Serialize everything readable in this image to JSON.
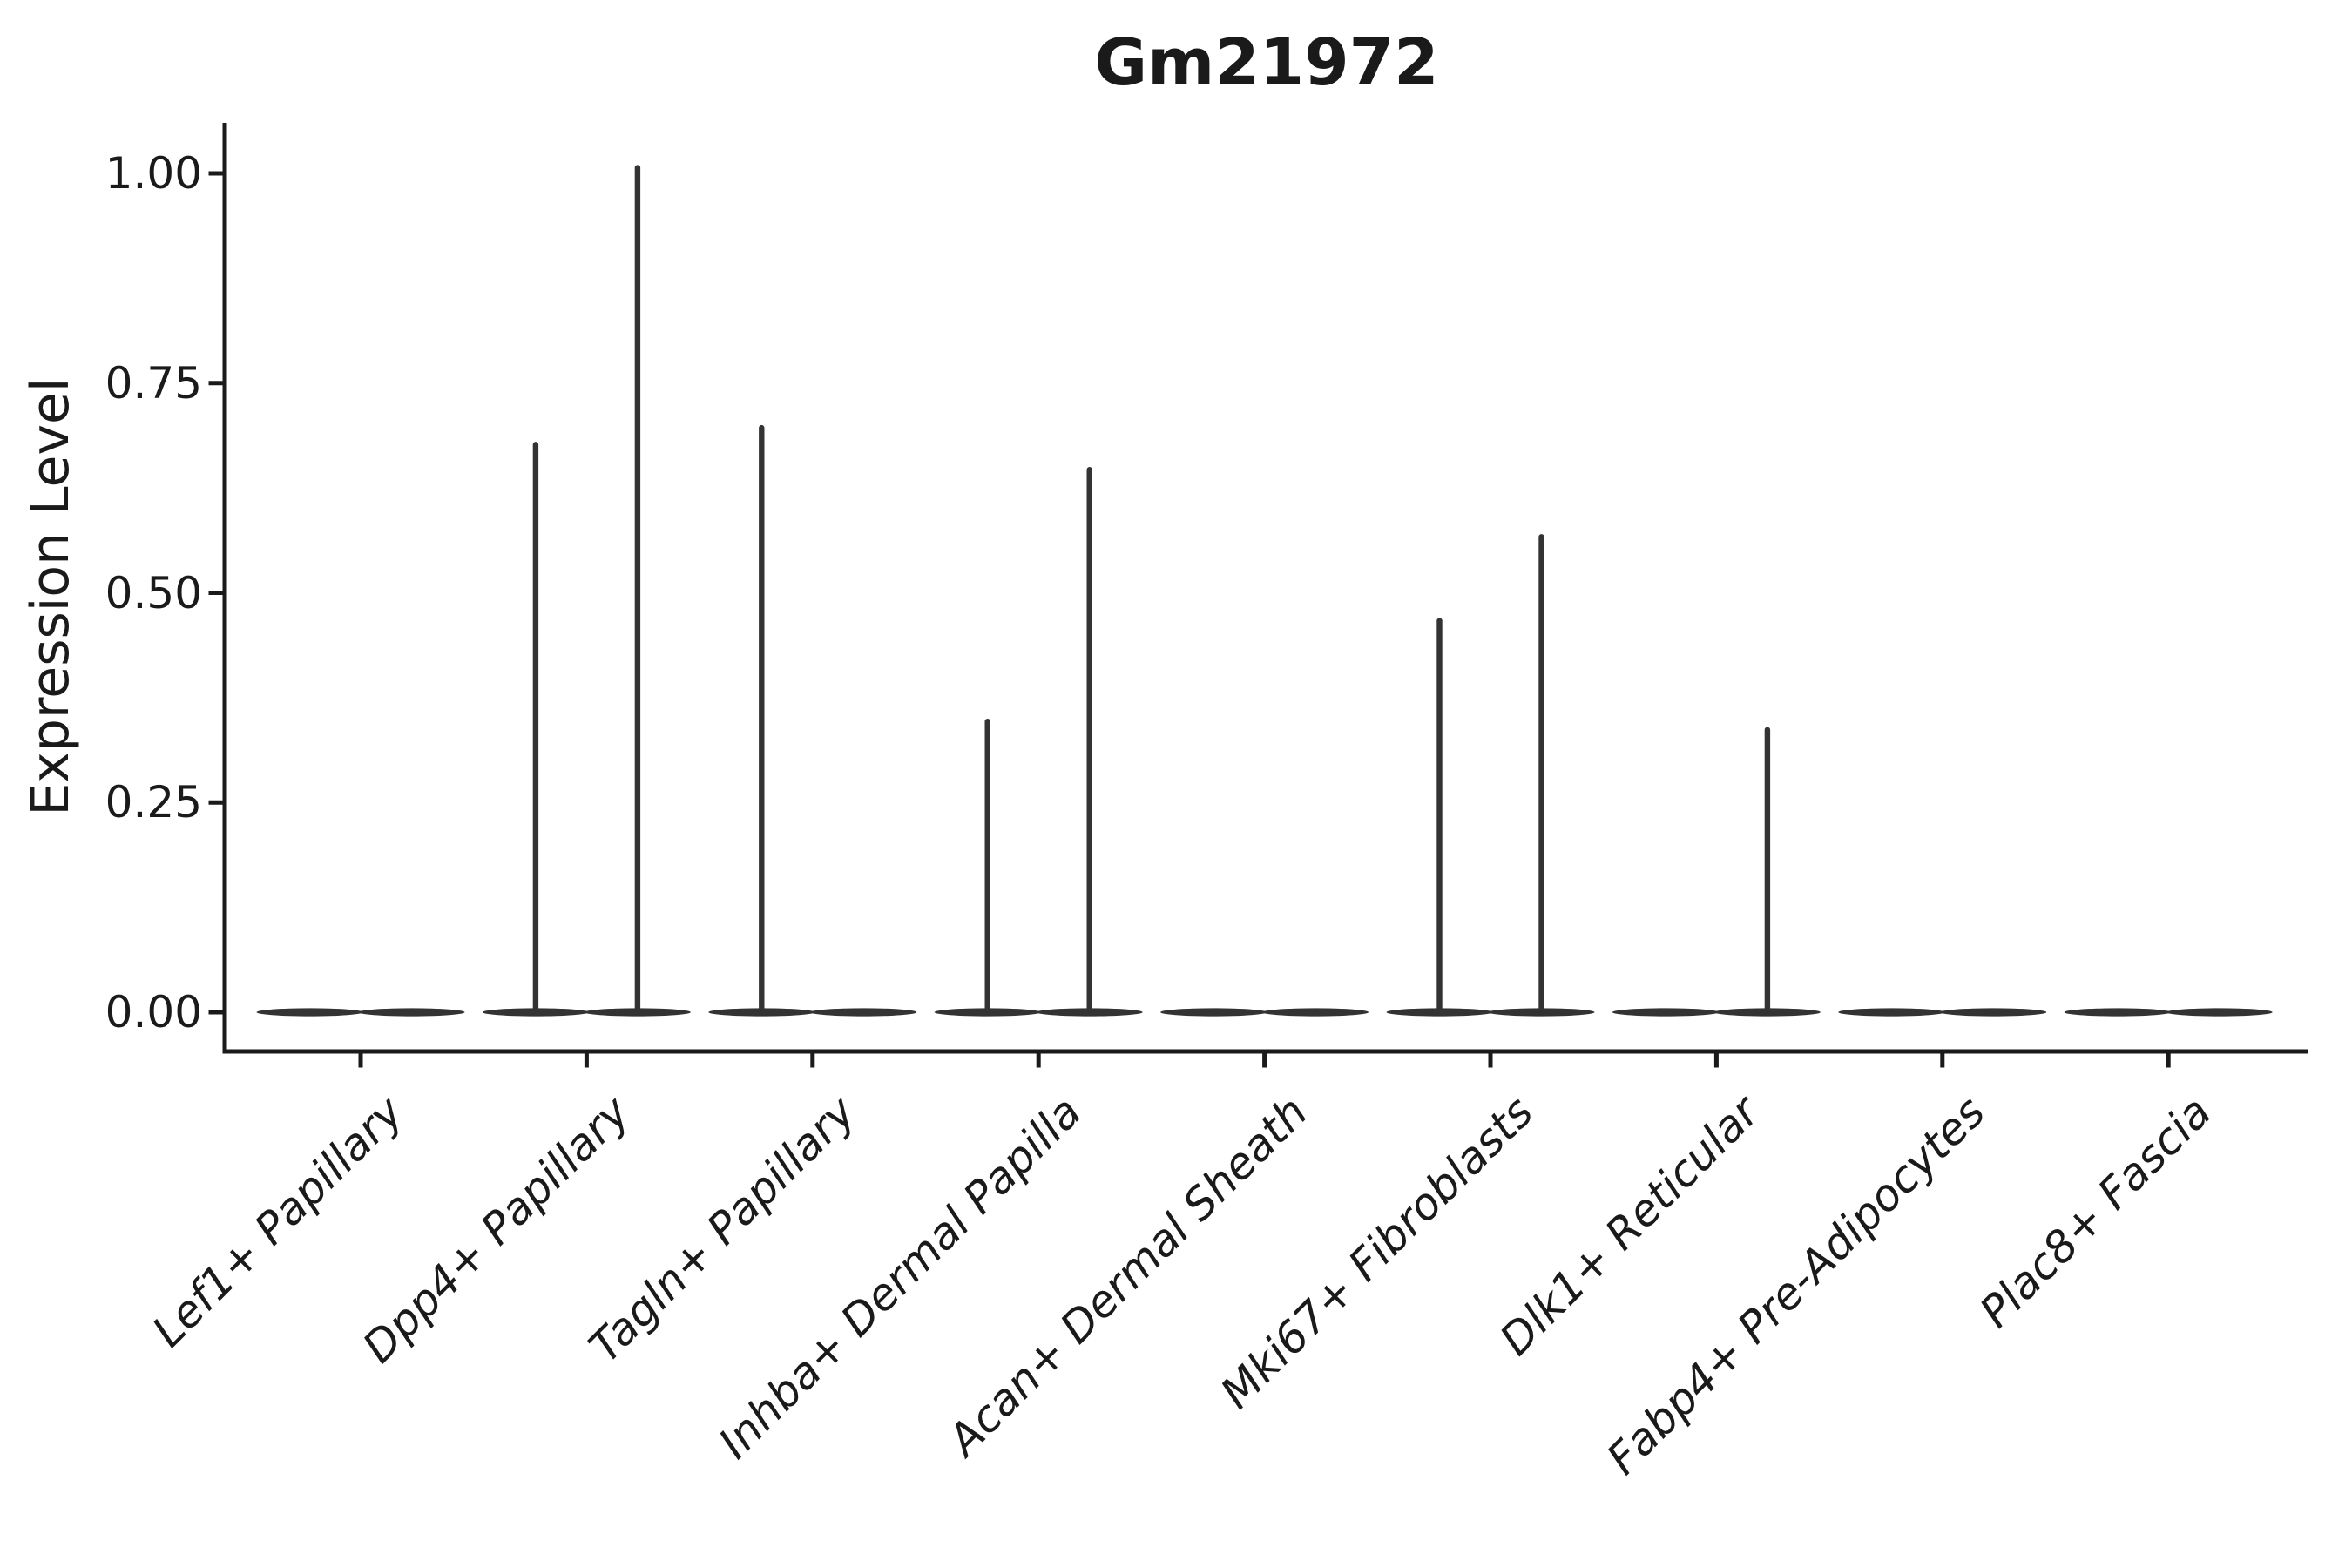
{
  "figure": {
    "background": "#ffffff",
    "ink_color": "#1a1a1a",
    "violin_color": "#333333"
  },
  "chart_data": {
    "type": "violin",
    "title": "Gm21972",
    "xlabel": "",
    "ylabel": "Expression Level",
    "ylim": [
      -0.05,
      1.06
    ],
    "grid": false,
    "yticks": [
      0.0,
      0.25,
      0.5,
      0.75,
      1.0
    ],
    "ytick_labels": [
      "0.00",
      "0.25",
      "0.50",
      "0.75",
      "1.00"
    ],
    "categories": [
      "Lef1+ Papillary",
      "Dpp4+ Papillary",
      "Tagln+ Papillary",
      "Inhba+ Dermal Papilla",
      "Acan+ Dermal Sheath",
      "Mki67+ Fibroblasts",
      "Dlk1+ Reticular",
      "Fabp4+ Pre-Adipocytes",
      "Plac8+ Fascia"
    ],
    "series": [
      {
        "name": "violin_left",
        "max_expression": [
          0,
          0.68,
          0.7,
          0.35,
          0,
          0.47,
          0,
          0,
          0
        ]
      },
      {
        "name": "violin_right",
        "max_expression": [
          0,
          1.01,
          0,
          0.65,
          0,
          0.57,
          0.34,
          0,
          0
        ]
      }
    ]
  }
}
